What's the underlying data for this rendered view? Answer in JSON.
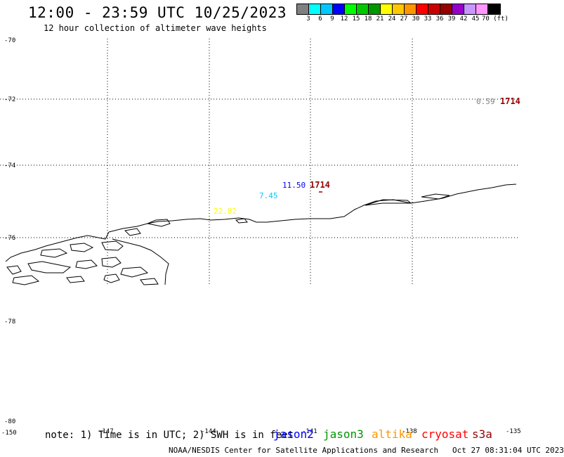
{
  "header": {
    "title": "12:00 - 23:59 UTC 10/25/2023",
    "subtitle": "12 hour collection of altimeter wave heights"
  },
  "colorbar": {
    "colors": [
      "#808080",
      "#00ffff",
      "#00c8ff",
      "#0000ff",
      "#00ff00",
      "#00c800",
      "#009600",
      "#ffff00",
      "#ffc800",
      "#ff9600",
      "#ff0000",
      "#c80000",
      "#960000",
      "#9600c8",
      "#c896ff",
      "#ff96ff",
      "#000000"
    ],
    "labels": [
      "3",
      "6",
      "9",
      "12",
      "15",
      "18",
      "21",
      "24",
      "27",
      "30",
      "33",
      "36",
      "39",
      "42",
      "45",
      "70 (ft)"
    ],
    "units": "(ft)"
  },
  "axes": {
    "lat_labels": [
      "-70",
      "-72",
      "-74",
      "-76",
      "-78",
      "-80"
    ],
    "lon_labels": [
      "-150",
      "-147",
      "-144",
      "-141",
      "-138",
      "-135"
    ]
  },
  "observations": [
    {
      "text": "0.59",
      "color": "#808080"
    },
    {
      "text": "1714",
      "color": "#960000"
    },
    {
      "text": "11.50",
      "color": "#0000ff"
    },
    {
      "text": "1714",
      "color": "#960000"
    },
    {
      "text": "7.45",
      "color": "#00c8ff"
    },
    {
      "text": "22.82",
      "color": "#ffff00"
    }
  ],
  "footer": {
    "note": "note: 1) Time is in UTC; 2) SWH is in feet",
    "satellites": [
      {
        "name": "jason2",
        "color": "#0000ff"
      },
      {
        "name": "jason3",
        "color": "#009600"
      },
      {
        "name": "altika",
        "color": "#ff9600"
      },
      {
        "name": "cryosat",
        "color": "#ff0000"
      },
      {
        "name": "s3a",
        "color": "#960000"
      }
    ],
    "credit": "NOAA/NESDIS Center for Satellite Applications and Research",
    "timestamp": "Oct 27 08:31:04 UTC 2023"
  }
}
